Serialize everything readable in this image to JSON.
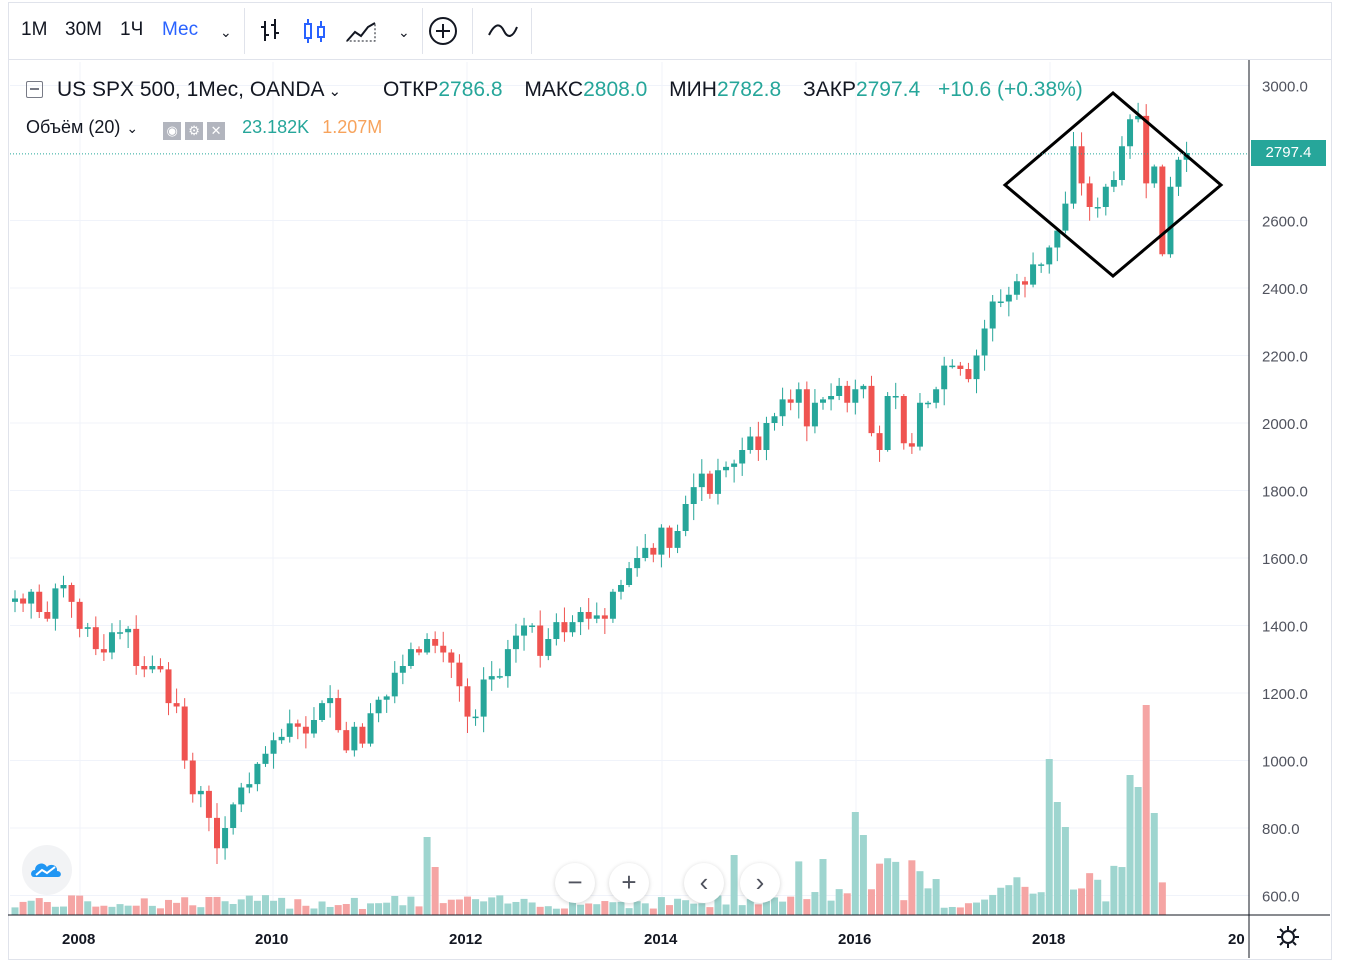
{
  "toolbar": {
    "intervals": [
      "1М",
      "30М",
      "1Ч",
      "Мес"
    ],
    "active_interval": "Мес",
    "icons": [
      "bar-style-icon",
      "candles-icon",
      "area-chart-icon",
      "chevron-down-icon",
      "add-indicator-icon",
      "compare-icon"
    ]
  },
  "legend": {
    "symbol": "US SPX 500, 1Мес, OANDA",
    "open_label": "ОТКР",
    "open": "2786.8",
    "high_label": "МАКС",
    "high": "2808.0",
    "low_label": "МИН",
    "low": "2782.8",
    "close_label": "ЗАКР",
    "close": "2797.4",
    "change": "+10.6 (+0.38%)",
    "volume_label": "Объём (20)",
    "volume_value": "23.182K",
    "volume_ma": "1.207M"
  },
  "price_tag": "2797.4",
  "colors": {
    "up": "#26a69a",
    "down": "#ef5350",
    "up_vol": "#9ed5cf",
    "down_vol": "#f5a5a4",
    "vol_ma": "#f7a35c"
  },
  "chart_data": {
    "type": "candlestick",
    "y_axis_labels": [
      "3000.0",
      "2600.0",
      "2400.0",
      "2200.0",
      "2000.0",
      "1800.0",
      "1600.0",
      "1400.0",
      "1200.0",
      "1000.0",
      "800.0",
      "600.0"
    ],
    "ylim": [
      600,
      3000
    ],
    "x_axis_labels": [
      "2008",
      "2010",
      "2012",
      "2014",
      "2016",
      "2018",
      "20"
    ],
    "current_price": 2797.4,
    "monthly_closes": [
      1480,
      1465,
      1500,
      1440,
      1420,
      1510,
      1520,
      1470,
      1390,
      1395,
      1330,
      1320,
      1380,
      1380,
      1390,
      1280,
      1270,
      1280,
      1270,
      1170,
      1160,
      1000,
      900,
      910,
      830,
      740,
      800,
      870,
      920,
      930,
      990,
      1020,
      1060,
      1070,
      1110,
      1100,
      1080,
      1120,
      1170,
      1185,
      1090,
      1030,
      1100,
      1050,
      1140,
      1180,
      1190,
      1260,
      1280,
      1330,
      1320,
      1360,
      1340,
      1320,
      1290,
      1220,
      1130,
      1130,
      1240,
      1250,
      1250,
      1330,
      1370,
      1400,
      1400,
      1310,
      1360,
      1410,
      1380,
      1410,
      1440,
      1420,
      1430,
      1420,
      1500,
      1520,
      1570,
      1600,
      1630,
      1610,
      1690,
      1630,
      1680,
      1760,
      1810,
      1850,
      1790,
      1860,
      1870,
      1880,
      1920,
      1960,
      1920,
      2000,
      2020,
      2070,
      2060,
      2100,
      1990,
      2060,
      2070,
      2080,
      2110,
      2060,
      2100,
      2110,
      1970,
      1920,
      2080,
      2080,
      1940,
      1930,
      2060,
      2060,
      2100,
      2170,
      2170,
      2160,
      2130,
      2200,
      2280,
      2360,
      2360,
      2380,
      2420,
      2410,
      2470,
      2470,
      2520,
      2570,
      2650,
      2820,
      2710,
      2640,
      2640,
      2700,
      2720,
      2820,
      2900,
      2910,
      2710,
      2760,
      2500,
      2700,
      2780,
      2800
    ],
    "volume_label_note": "monthly volume histogram with shared axis"
  },
  "shape": {
    "type": "diamond",
    "label": ""
  }
}
